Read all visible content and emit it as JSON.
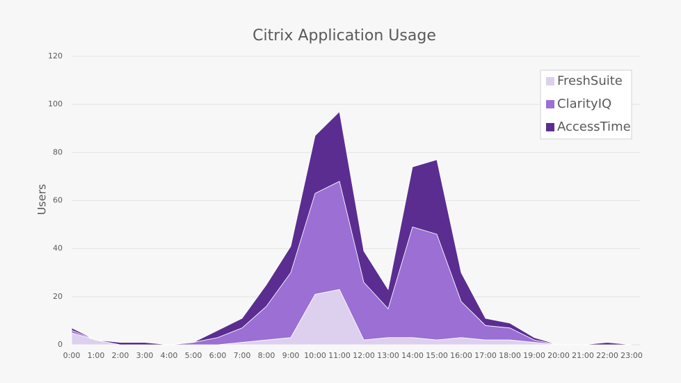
{
  "chart_data": {
    "type": "stacked-area",
    "title": "Citrix Application Usage",
    "y_label": "Users",
    "categories": [
      "0:00",
      "1:00",
      "2:00",
      "3:00",
      "4:00",
      "5:00",
      "6:00",
      "7:00",
      "8:00",
      "9:00",
      "10:00",
      "11:00",
      "12:00",
      "13:00",
      "14:00",
      "15:00",
      "16:00",
      "17:00",
      "18:00",
      "19:00",
      "20:00",
      "21:00",
      "22:00",
      "23:00"
    ],
    "series": [
      {
        "name": "FreshSuite",
        "color": "#ddd0ee",
        "values": [
          5,
          2,
          0,
          0,
          0,
          0,
          0,
          1,
          2,
          3,
          21,
          23,
          2,
          3,
          3,
          2,
          3,
          2,
          2,
          1,
          0,
          0,
          0,
          0
        ]
      },
      {
        "name": "ClarityIQ",
        "color": "#9b6fd4",
        "values": [
          1,
          0,
          0,
          0,
          0,
          1,
          3,
          6,
          14,
          27,
          42,
          45,
          24,
          12,
          46,
          44,
          15,
          6,
          5,
          1,
          0,
          0,
          0,
          0
        ]
      },
      {
        "name": "AccessTime",
        "color": "#5b2d90",
        "values": [
          1,
          0,
          1,
          1,
          0,
          0,
          3,
          4,
          9,
          11,
          24,
          29,
          13,
          8,
          25,
          31,
          12,
          3,
          2,
          1,
          0,
          0,
          1,
          0
        ]
      }
    ],
    "ylim": [
      0,
      120
    ],
    "yticks": [
      0,
      20,
      40,
      60,
      80,
      100,
      120
    ],
    "grid": true,
    "legend": "upper right"
  }
}
